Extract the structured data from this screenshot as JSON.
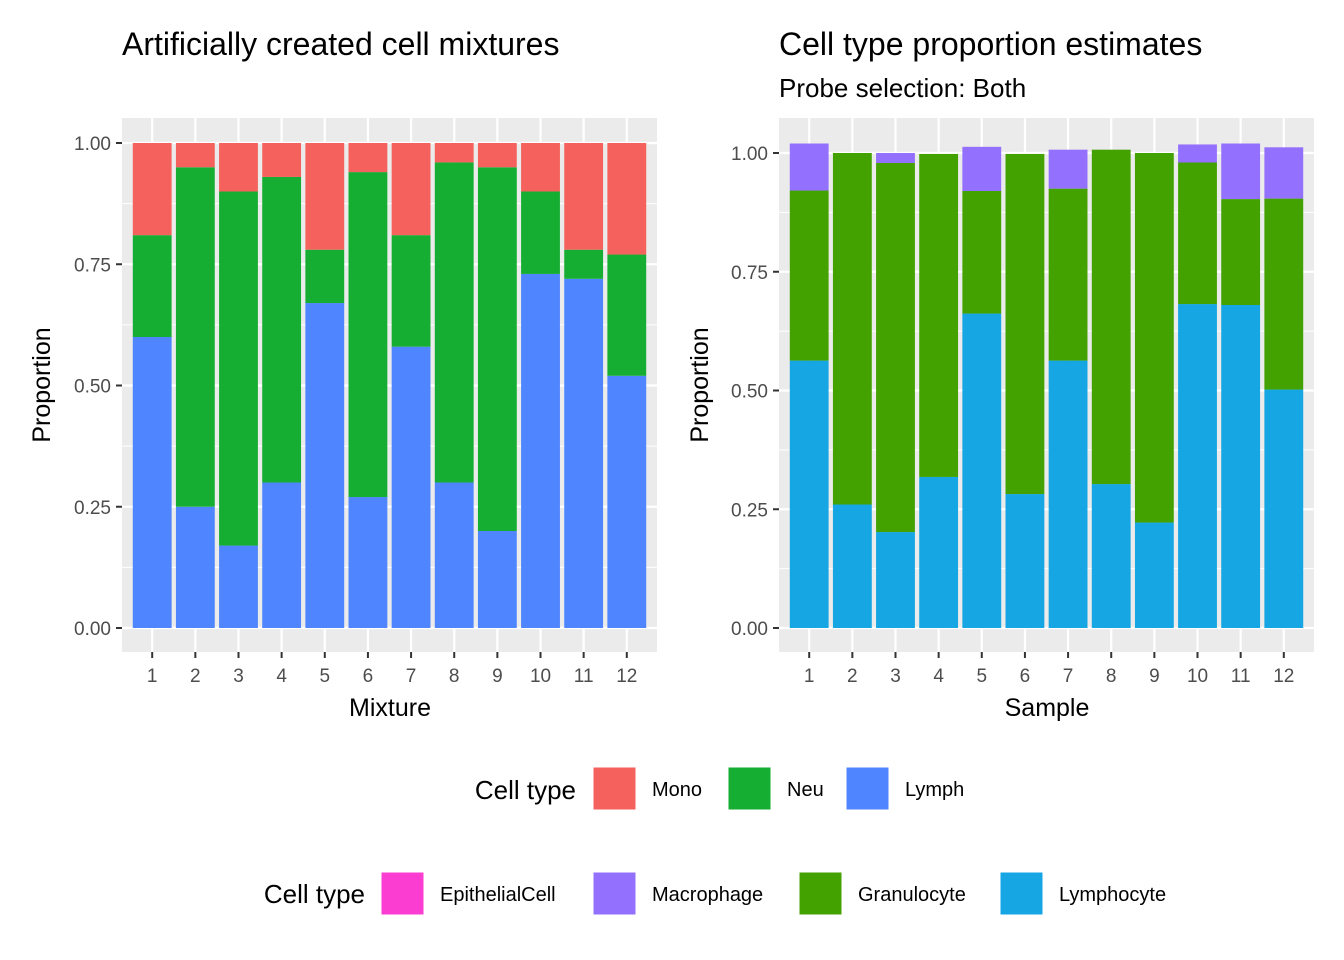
{
  "chart_data": [
    {
      "type": "bar",
      "stacked": true,
      "title": "Artificially created cell mixtures",
      "subtitle": "",
      "xlabel": "Mixture",
      "ylabel": "Proportion",
      "ylim": [
        0,
        1.0
      ],
      "yticks": [
        "0.00",
        "0.25",
        "0.50",
        "0.75",
        "1.00"
      ],
      "categories": [
        "1",
        "2",
        "3",
        "4",
        "5",
        "6",
        "7",
        "8",
        "9",
        "10",
        "11",
        "12"
      ],
      "series": [
        {
          "name": "Lymph",
          "color": "#4F85FE",
          "values": [
            0.6,
            0.25,
            0.17,
            0.3,
            0.67,
            0.27,
            0.58,
            0.3,
            0.2,
            0.73,
            0.72,
            0.52
          ]
        },
        {
          "name": "Neu",
          "color": "#16AE32",
          "values": [
            0.21,
            0.7,
            0.73,
            0.63,
            0.11,
            0.67,
            0.23,
            0.66,
            0.75,
            0.17,
            0.06,
            0.25
          ]
        },
        {
          "name": "Mono",
          "color": "#F5615C",
          "values": [
            0.19,
            0.05,
            0.1,
            0.07,
            0.22,
            0.06,
            0.19,
            0.04,
            0.05,
            0.1,
            0.22,
            0.23
          ]
        }
      ],
      "grid": true
    },
    {
      "type": "bar",
      "stacked": true,
      "title": "Cell type proportion estimates",
      "subtitle": "Probe selection: Both",
      "xlabel": "Sample",
      "ylabel": "Proportion",
      "ylim": [
        0,
        1.0
      ],
      "yticks": [
        "0.00",
        "0.25",
        "0.50",
        "0.75",
        "1.00"
      ],
      "categories": [
        "1",
        "2",
        "3",
        "4",
        "5",
        "6",
        "7",
        "8",
        "9",
        "10",
        "11",
        "12"
      ],
      "series": [
        {
          "name": "Lymphocyte",
          "color": "#15A6E3",
          "values": [
            0.563,
            0.26,
            0.202,
            0.318,
            0.662,
            0.282,
            0.563,
            0.303,
            0.222,
            0.682,
            0.68,
            0.502
          ]
        },
        {
          "name": "Granulocyte",
          "color": "#44A200",
          "values": [
            0.358,
            0.74,
            0.777,
            0.68,
            0.258,
            0.716,
            0.362,
            0.704,
            0.778,
            0.298,
            0.223,
            0.402
          ]
        },
        {
          "name": "Macrophage",
          "color": "#9470FE",
          "values": [
            0.099,
            0.0,
            0.021,
            0.0,
            0.093,
            0.0,
            0.082,
            0.0,
            0.0,
            0.038,
            0.117,
            0.108
          ]
        },
        {
          "name": "EpithelialCell",
          "color": "#FB3DD2",
          "values": [
            0,
            0,
            0,
            0,
            0,
            0,
            0,
            0,
            0,
            0,
            0,
            0
          ]
        }
      ],
      "grid": true
    }
  ],
  "legends": [
    {
      "title": "Cell type",
      "items": [
        {
          "label": "Mono",
          "color": "#F5615C"
        },
        {
          "label": "Neu",
          "color": "#16AE32"
        },
        {
          "label": "Lymph",
          "color": "#4F85FE"
        }
      ]
    },
    {
      "title": "Cell type",
      "items": [
        {
          "label": "EpithelialCell",
          "color": "#FB3DD2"
        },
        {
          "label": "Macrophage",
          "color": "#9470FE"
        },
        {
          "label": "Granulocyte",
          "color": "#44A200"
        },
        {
          "label": "Lymphocyte",
          "color": "#15A6E3"
        }
      ]
    }
  ]
}
